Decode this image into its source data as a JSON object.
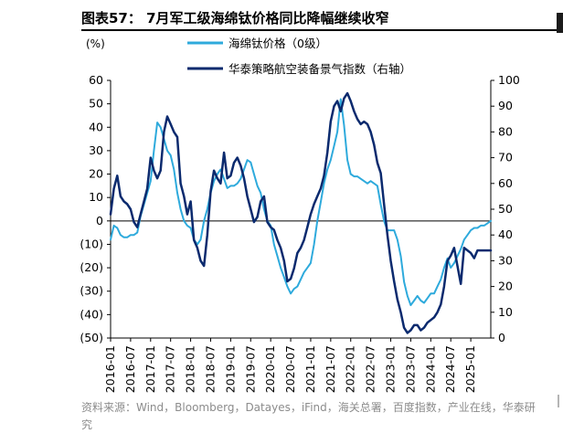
{
  "header": {
    "title": "图表57：  7月军工级海绵钛价格同比降幅继续收窄"
  },
  "source": "资料来源：Wind，Bloomberg，Datayes，iFind，海关总署，百度指数，产业在线，华泰研究",
  "colors": {
    "series1": "#2eaadc",
    "series2": "#0b2a6e",
    "axis": "#000000",
    "source_text": "#8c8c8c"
  },
  "chart_data": {
    "type": "line",
    "left_unit_label": "(%)",
    "left_axis": {
      "ylim": [
        -50,
        60
      ],
      "ticks": [
        60,
        50,
        40,
        30,
        20,
        10,
        0,
        -10,
        -20,
        -30,
        -40,
        -50
      ],
      "tick_labels": [
        "60",
        "50",
        "40",
        "30",
        "20",
        "10",
        "0",
        "(10)",
        "(20)",
        "(30)",
        "(40)",
        "(50)"
      ]
    },
    "right_axis": {
      "ylim": [
        0,
        100
      ],
      "ticks": [
        100,
        90,
        80,
        70,
        60,
        50,
        40,
        30,
        20,
        10,
        0
      ],
      "tick_labels": [
        "100",
        "90",
        "80",
        "70",
        "60",
        "50",
        "40",
        "30",
        "20",
        "10",
        "0"
      ]
    },
    "x_axis": {
      "start": "2016-01",
      "end": "2025-07",
      "tick_labels": [
        "2016-01",
        "2016-07",
        "2017-01",
        "2017-07",
        "2018-01",
        "2018-07",
        "2019-01",
        "2019-07",
        "2020-01",
        "2020-07",
        "2021-01",
        "2021-07",
        "2022-01",
        "2022-07",
        "2023-01",
        "2023-07",
        "2024-01",
        "2024-07",
        "2025-01"
      ]
    },
    "series": [
      {
        "name": "海绵钛价格（0级）",
        "axis": "left",
        "color": "#2eaadc",
        "points": [
          [
            "2016-01",
            -8
          ],
          [
            "2016-02",
            -2
          ],
          [
            "2016-03",
            -3
          ],
          [
            "2016-04",
            -6
          ],
          [
            "2016-05",
            -7
          ],
          [
            "2016-06",
            -7
          ],
          [
            "2016-07",
            -6
          ],
          [
            "2016-08",
            -6
          ],
          [
            "2016-09",
            -5
          ],
          [
            "2016-10",
            2
          ],
          [
            "2016-11",
            7
          ],
          [
            "2016-12",
            12
          ],
          [
            "2017-01",
            17
          ],
          [
            "2017-02",
            30
          ],
          [
            "2017-03",
            42
          ],
          [
            "2017-04",
            40
          ],
          [
            "2017-05",
            35
          ],
          [
            "2017-06",
            30
          ],
          [
            "2017-07",
            28
          ],
          [
            "2017-08",
            22
          ],
          [
            "2017-09",
            12
          ],
          [
            "2017-10",
            5
          ],
          [
            "2017-11",
            0
          ],
          [
            "2017-12",
            -2
          ],
          [
            "2018-01",
            -3
          ],
          [
            "2018-02",
            -8
          ],
          [
            "2018-03",
            -10
          ],
          [
            "2018-04",
            -8
          ],
          [
            "2018-05",
            0
          ],
          [
            "2018-06",
            5
          ],
          [
            "2018-07",
            12
          ],
          [
            "2018-08",
            17
          ],
          [
            "2018-09",
            20
          ],
          [
            "2018-10",
            22
          ],
          [
            "2018-11",
            18
          ],
          [
            "2018-12",
            14
          ],
          [
            "2019-01",
            15
          ],
          [
            "2019-02",
            15
          ],
          [
            "2019-03",
            16
          ],
          [
            "2019-04",
            18
          ],
          [
            "2019-05",
            22
          ],
          [
            "2019-06",
            26
          ],
          [
            "2019-07",
            25
          ],
          [
            "2019-08",
            20
          ],
          [
            "2019-09",
            15
          ],
          [
            "2019-10",
            12
          ],
          [
            "2019-11",
            5
          ],
          [
            "2019-12",
            0
          ],
          [
            "2020-01",
            -2
          ],
          [
            "2020-02",
            -10
          ],
          [
            "2020-03",
            -15
          ],
          [
            "2020-04",
            -20
          ],
          [
            "2020-05",
            -24
          ],
          [
            "2020-06",
            -28
          ],
          [
            "2020-07",
            -31
          ],
          [
            "2020-08",
            -29
          ],
          [
            "2020-09",
            -28
          ],
          [
            "2020-10",
            -25
          ],
          [
            "2020-11",
            -22
          ],
          [
            "2020-12",
            -20
          ],
          [
            "2021-01",
            -18
          ],
          [
            "2021-02",
            -10
          ],
          [
            "2021-03",
            0
          ],
          [
            "2021-04",
            8
          ],
          [
            "2021-05",
            16
          ],
          [
            "2021-06",
            22
          ],
          [
            "2021-07",
            26
          ],
          [
            "2021-08",
            32
          ],
          [
            "2021-09",
            38
          ],
          [
            "2021-10",
            52
          ],
          [
            "2021-11",
            41
          ],
          [
            "2021-12",
            26
          ],
          [
            "2022-01",
            20
          ],
          [
            "2022-02",
            19
          ],
          [
            "2022-03",
            19
          ],
          [
            "2022-04",
            18
          ],
          [
            "2022-05",
            17
          ],
          [
            "2022-06",
            16
          ],
          [
            "2022-07",
            17
          ],
          [
            "2022-08",
            16
          ],
          [
            "2022-09",
            15
          ],
          [
            "2022-10",
            7
          ],
          [
            "2022-11",
            0
          ],
          [
            "2022-12",
            -4
          ],
          [
            "2023-01",
            -4
          ],
          [
            "2023-02",
            -4
          ],
          [
            "2023-03",
            -8
          ],
          [
            "2023-04",
            -15
          ],
          [
            "2023-05",
            -26
          ],
          [
            "2023-06",
            -32
          ],
          [
            "2023-07",
            -36
          ],
          [
            "2023-08",
            -34
          ],
          [
            "2023-09",
            -32
          ],
          [
            "2023-10",
            -34
          ],
          [
            "2023-11",
            -35
          ],
          [
            "2023-12",
            -33
          ],
          [
            "2024-01",
            -31
          ],
          [
            "2024-02",
            -31
          ],
          [
            "2024-03",
            -28
          ],
          [
            "2024-04",
            -25
          ],
          [
            "2024-05",
            -20
          ],
          [
            "2024-06",
            -16
          ],
          [
            "2024-07",
            -20
          ],
          [
            "2024-08",
            -18
          ],
          [
            "2024-09",
            -15
          ],
          [
            "2024-10",
            -12
          ],
          [
            "2024-11",
            -8
          ],
          [
            "2024-12",
            -6
          ],
          [
            "2025-01",
            -4
          ],
          [
            "2025-02",
            -3
          ],
          [
            "2025-03",
            -3
          ],
          [
            "2025-04",
            -2
          ],
          [
            "2025-05",
            -2
          ],
          [
            "2025-06",
            -1
          ],
          [
            "2025-07",
            0
          ]
        ]
      },
      {
        "name": "华泰策略航空装备景气指数（右轴）",
        "axis": "right",
        "color": "#0b2a6e",
        "points": [
          [
            "2016-01",
            48
          ],
          [
            "2016-02",
            58
          ],
          [
            "2016-03",
            63
          ],
          [
            "2016-04",
            55
          ],
          [
            "2016-05",
            53
          ],
          [
            "2016-06",
            52
          ],
          [
            "2016-07",
            50
          ],
          [
            "2016-08",
            45
          ],
          [
            "2016-09",
            43
          ],
          [
            "2016-10",
            48
          ],
          [
            "2016-11",
            53
          ],
          [
            "2016-12",
            58
          ],
          [
            "2017-01",
            70
          ],
          [
            "2017-02",
            65
          ],
          [
            "2017-03",
            62
          ],
          [
            "2017-04",
            65
          ],
          [
            "2017-05",
            80
          ],
          [
            "2017-06",
            86
          ],
          [
            "2017-07",
            83
          ],
          [
            "2017-08",
            80
          ],
          [
            "2017-09",
            78
          ],
          [
            "2017-10",
            60
          ],
          [
            "2017-11",
            55
          ],
          [
            "2017-12",
            48
          ],
          [
            "2018-01",
            53
          ],
          [
            "2018-02",
            38
          ],
          [
            "2018-03",
            35
          ],
          [
            "2018-04",
            30
          ],
          [
            "2018-05",
            28
          ],
          [
            "2018-06",
            40
          ],
          [
            "2018-07",
            57
          ],
          [
            "2018-08",
            65
          ],
          [
            "2018-09",
            62
          ],
          [
            "2018-10",
            60
          ],
          [
            "2018-11",
            72
          ],
          [
            "2018-12",
            62
          ],
          [
            "2019-01",
            63
          ],
          [
            "2019-02",
            68
          ],
          [
            "2019-03",
            70
          ],
          [
            "2019-04",
            67
          ],
          [
            "2019-05",
            62
          ],
          [
            "2019-06",
            55
          ],
          [
            "2019-07",
            50
          ],
          [
            "2019-08",
            45
          ],
          [
            "2019-09",
            47
          ],
          [
            "2019-10",
            53
          ],
          [
            "2019-11",
            55
          ],
          [
            "2019-12",
            45
          ],
          [
            "2020-01",
            43
          ],
          [
            "2020-02",
            42
          ],
          [
            "2020-03",
            38
          ],
          [
            "2020-04",
            35
          ],
          [
            "2020-05",
            30
          ],
          [
            "2020-06",
            22
          ],
          [
            "2020-07",
            23
          ],
          [
            "2020-08",
            27
          ],
          [
            "2020-09",
            33
          ],
          [
            "2020-10",
            35
          ],
          [
            "2020-11",
            38
          ],
          [
            "2020-12",
            43
          ],
          [
            "2021-01",
            48
          ],
          [
            "2021-02",
            52
          ],
          [
            "2021-03",
            55
          ],
          [
            "2021-04",
            58
          ],
          [
            "2021-05",
            63
          ],
          [
            "2021-06",
            72
          ],
          [
            "2021-07",
            84
          ],
          [
            "2021-08",
            90
          ],
          [
            "2021-09",
            92
          ],
          [
            "2021-10",
            88
          ],
          [
            "2021-11",
            93
          ],
          [
            "2021-12",
            95
          ],
          [
            "2022-01",
            92
          ],
          [
            "2022-02",
            88
          ],
          [
            "2022-03",
            85
          ],
          [
            "2022-04",
            83
          ],
          [
            "2022-05",
            84
          ],
          [
            "2022-06",
            83
          ],
          [
            "2022-07",
            80
          ],
          [
            "2022-08",
            75
          ],
          [
            "2022-09",
            68
          ],
          [
            "2022-10",
            64
          ],
          [
            "2022-11",
            52
          ],
          [
            "2022-12",
            40
          ],
          [
            "2023-01",
            30
          ],
          [
            "2023-02",
            22
          ],
          [
            "2023-03",
            15
          ],
          [
            "2023-04",
            10
          ],
          [
            "2023-05",
            4
          ],
          [
            "2023-06",
            2
          ],
          [
            "2023-07",
            3
          ],
          [
            "2023-08",
            5
          ],
          [
            "2023-09",
            5
          ],
          [
            "2023-10",
            3
          ],
          [
            "2023-11",
            4
          ],
          [
            "2023-12",
            6
          ],
          [
            "2024-01",
            7
          ],
          [
            "2024-02",
            8
          ],
          [
            "2024-03",
            10
          ],
          [
            "2024-04",
            13
          ],
          [
            "2024-05",
            20
          ],
          [
            "2024-06",
            30
          ],
          [
            "2024-07",
            32
          ],
          [
            "2024-08",
            35
          ],
          [
            "2024-09",
            28
          ],
          [
            "2024-10",
            21
          ],
          [
            "2024-11",
            35
          ],
          [
            "2024-12",
            34
          ],
          [
            "2025-01",
            33
          ],
          [
            "2025-02",
            31
          ],
          [
            "2025-03",
            34
          ],
          [
            "2025-04",
            34
          ],
          [
            "2025-05",
            34
          ],
          [
            "2025-06",
            34
          ],
          [
            "2025-07",
            34
          ]
        ]
      }
    ]
  }
}
